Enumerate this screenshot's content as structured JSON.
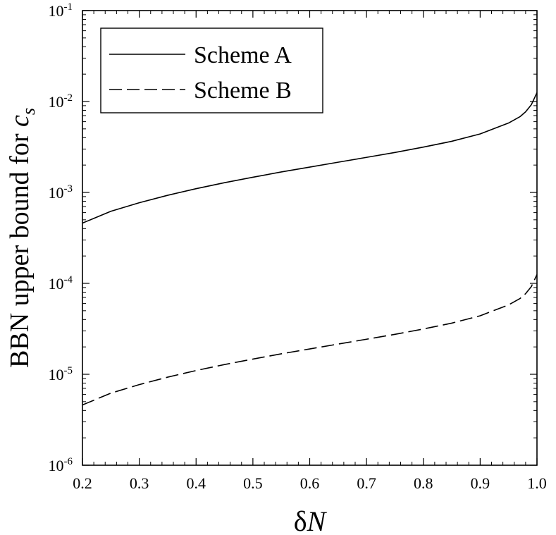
{
  "chart_data": {
    "type": "line",
    "xlabel": "δN",
    "ylabel": "BBN upper bound for c",
    "ylabel_subscript": "s",
    "xlim": [
      0.2,
      1.0
    ],
    "ylim": [
      1e-06,
      0.1
    ],
    "yscale": "log",
    "grid": false,
    "legend_position": "top-left",
    "x_ticks": [
      0.2,
      0.3,
      0.4,
      0.5,
      0.6,
      0.7,
      0.8,
      0.9,
      1.0
    ],
    "x_tick_labels": [
      "0.2",
      "0.3",
      "0.4",
      "0.5",
      "0.6",
      "0.7",
      "0.8",
      "0.9",
      "1.0"
    ],
    "y_ticks": [
      {
        "value": 1e-06,
        "base": "10",
        "exp": "-6"
      },
      {
        "value": 1e-05,
        "base": "10",
        "exp": "-5"
      },
      {
        "value": 0.0001,
        "base": "10",
        "exp": "-4"
      },
      {
        "value": 0.001,
        "base": "10",
        "exp": "-3"
      },
      {
        "value": 0.01,
        "base": "10",
        "exp": "-2"
      },
      {
        "value": 0.1,
        "base": "10",
        "exp": "-1"
      }
    ],
    "series": [
      {
        "name": "Scheme A",
        "style": "solid",
        "color": "#000000",
        "x": [
          0.2,
          0.25,
          0.3,
          0.35,
          0.4,
          0.45,
          0.5,
          0.55,
          0.6,
          0.65,
          0.7,
          0.75,
          0.8,
          0.85,
          0.9,
          0.95,
          0.97,
          0.98,
          0.99,
          1.0
        ],
        "y": [
          0.00046,
          0.00062,
          0.00077,
          0.00093,
          0.0011,
          0.00128,
          0.00147,
          0.00168,
          0.0019,
          0.00215,
          0.00243,
          0.00275,
          0.00315,
          0.00365,
          0.0044,
          0.0058,
          0.0068,
          0.0077,
          0.0092,
          0.0125
        ]
      },
      {
        "name": "Scheme B",
        "style": "dashed",
        "color": "#000000",
        "x": [
          0.2,
          0.25,
          0.3,
          0.35,
          0.4,
          0.45,
          0.5,
          0.55,
          0.6,
          0.65,
          0.7,
          0.75,
          0.8,
          0.85,
          0.9,
          0.95,
          0.97,
          0.98,
          0.99,
          1.0
        ],
        "y": [
          4.6e-06,
          6.2e-06,
          7.7e-06,
          9.3e-06,
          1.1e-05,
          1.28e-05,
          1.47e-05,
          1.68e-05,
          1.9e-05,
          2.15e-05,
          2.43e-05,
          2.75e-05,
          3.15e-05,
          3.65e-05,
          4.4e-05,
          5.8e-05,
          6.8e-05,
          7.7e-05,
          9.2e-05,
          0.000125
        ]
      }
    ]
  }
}
